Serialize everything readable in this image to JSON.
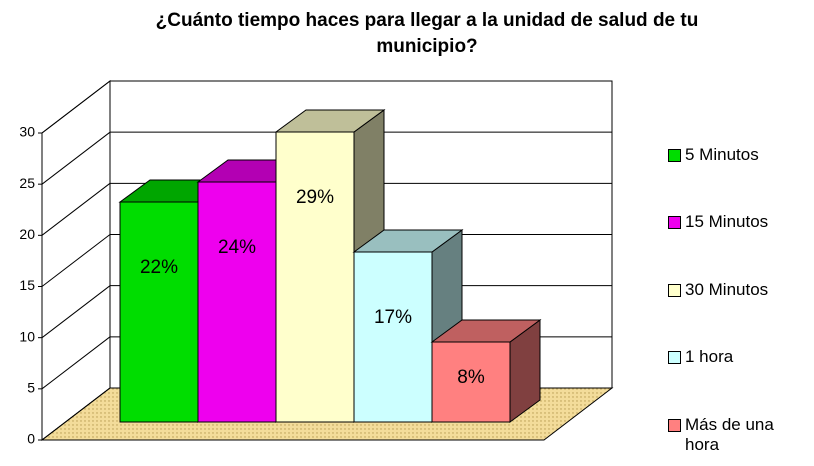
{
  "chart_data": {
    "type": "bar3d",
    "title": "¿Cuánto tiempo haces para llegar a la unidad de salud de tu municipio?",
    "categories": [
      "5 Minutos",
      "15 Minutos",
      "30 Minutos",
      "1 hora",
      "Más de una hora"
    ],
    "values": [
      22,
      24,
      29,
      17,
      8
    ],
    "value_labels": [
      "22%",
      "24%",
      "29%",
      "17%",
      "8%"
    ],
    "colors": [
      "#00dd00",
      "#ee00ee",
      "#ffffcc",
      "#ccffff",
      "#ff8080"
    ],
    "ylim": [
      0,
      30
    ],
    "yticks": [
      0,
      5,
      10,
      15,
      20,
      25,
      30
    ],
    "grid": true,
    "legend": "right"
  }
}
